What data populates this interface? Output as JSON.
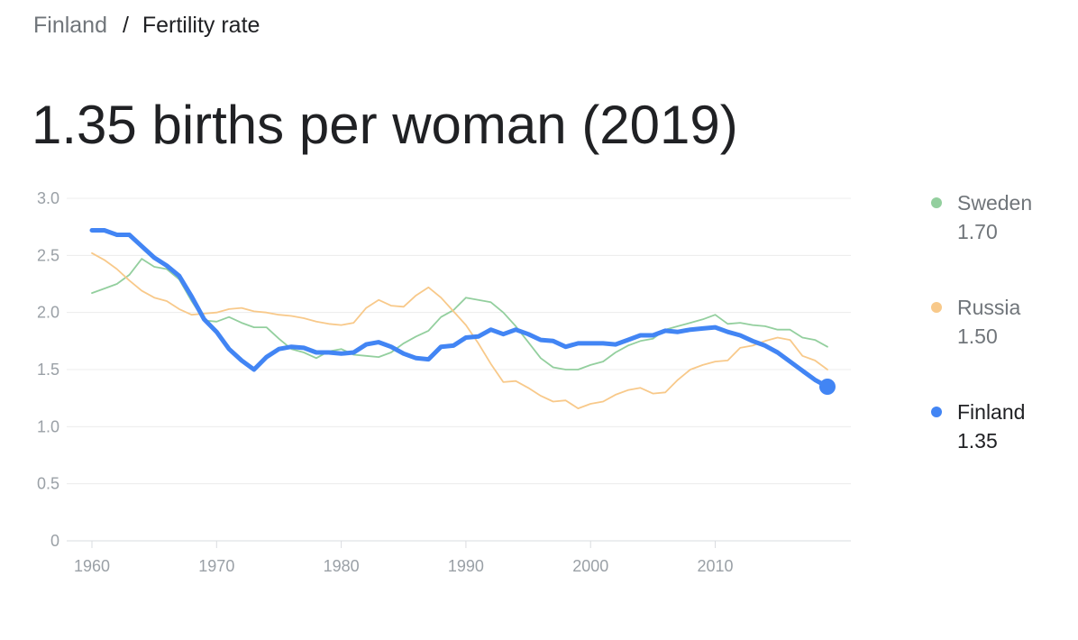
{
  "breadcrumb": {
    "parent": "Finland",
    "separator": "/",
    "current": "Fertility rate"
  },
  "headline": "1.35 births per woman (2019)",
  "legend": [
    {
      "name": "Sweden",
      "value": "1.70",
      "color": "#93cf9e",
      "active": false
    },
    {
      "name": "Russia",
      "value": "1.50",
      "color": "#f8c98a",
      "active": false
    },
    {
      "name": "Finland",
      "value": "1.35",
      "color": "#4285f4",
      "active": true
    }
  ],
  "chart_data": {
    "type": "line",
    "xlim": [
      1960,
      2019
    ],
    "ylim": [
      0,
      3.0
    ],
    "x_ticks": [
      1960,
      1970,
      1980,
      1990,
      2000,
      2010
    ],
    "x_tick_labels": [
      "1960",
      "1970",
      "1980",
      "1990",
      "2000",
      "2010"
    ],
    "y_ticks": [
      0,
      0.5,
      1.0,
      1.5,
      2.0,
      2.5,
      3.0
    ],
    "y_tick_labels": [
      "0",
      "0.5",
      "1.0",
      "1.5",
      "2.0",
      "2.5",
      "3.0"
    ],
    "grid": true,
    "legend_position": "right",
    "highlight_last_point": "Finland",
    "x": [
      1960,
      1961,
      1962,
      1963,
      1964,
      1965,
      1966,
      1967,
      1968,
      1969,
      1970,
      1971,
      1972,
      1973,
      1974,
      1975,
      1976,
      1977,
      1978,
      1979,
      1980,
      1981,
      1982,
      1983,
      1984,
      1985,
      1986,
      1987,
      1988,
      1989,
      1990,
      1991,
      1992,
      1993,
      1994,
      1995,
      1996,
      1997,
      1998,
      1999,
      2000,
      2001,
      2002,
      2003,
      2004,
      2005,
      2006,
      2007,
      2008,
      2009,
      2010,
      2011,
      2012,
      2013,
      2014,
      2015,
      2016,
      2017,
      2018,
      2019
    ],
    "series": [
      {
        "name": "Sweden",
        "color": "#93cf9e",
        "values": [
          2.17,
          2.21,
          2.25,
          2.33,
          2.47,
          2.4,
          2.38,
          2.29,
          2.1,
          1.93,
          1.92,
          1.96,
          1.91,
          1.87,
          1.87,
          1.77,
          1.68,
          1.65,
          1.6,
          1.66,
          1.68,
          1.63,
          1.62,
          1.61,
          1.65,
          1.73,
          1.79,
          1.84,
          1.96,
          2.02,
          2.13,
          2.11,
          2.09,
          2.0,
          1.88,
          1.74,
          1.6,
          1.52,
          1.5,
          1.5,
          1.54,
          1.57,
          1.65,
          1.71,
          1.75,
          1.77,
          1.85,
          1.88,
          1.91,
          1.94,
          1.98,
          1.9,
          1.91,
          1.89,
          1.88,
          1.85,
          1.85,
          1.78,
          1.76,
          1.7
        ]
      },
      {
        "name": "Russia",
        "color": "#f8c98a",
        "values": [
          2.52,
          2.46,
          2.38,
          2.28,
          2.19,
          2.13,
          2.1,
          2.03,
          1.98,
          1.99,
          2.0,
          2.03,
          2.04,
          2.01,
          2.0,
          1.98,
          1.97,
          1.95,
          1.92,
          1.9,
          1.89,
          1.91,
          2.04,
          2.11,
          2.06,
          2.05,
          2.15,
          2.22,
          2.13,
          2.01,
          1.89,
          1.73,
          1.55,
          1.39,
          1.4,
          1.34,
          1.27,
          1.22,
          1.23,
          1.16,
          1.2,
          1.22,
          1.28,
          1.32,
          1.34,
          1.29,
          1.3,
          1.41,
          1.5,
          1.54,
          1.57,
          1.58,
          1.69,
          1.71,
          1.75,
          1.78,
          1.76,
          1.62,
          1.58,
          1.5
        ]
      },
      {
        "name": "Finland",
        "color": "#4285f4",
        "values": [
          2.72,
          2.72,
          2.68,
          2.68,
          2.58,
          2.48,
          2.41,
          2.32,
          2.14,
          1.94,
          1.83,
          1.68,
          1.58,
          1.5,
          1.61,
          1.68,
          1.7,
          1.69,
          1.65,
          1.65,
          1.64,
          1.65,
          1.72,
          1.74,
          1.7,
          1.64,
          1.6,
          1.59,
          1.7,
          1.71,
          1.78,
          1.79,
          1.85,
          1.81,
          1.85,
          1.81,
          1.76,
          1.75,
          1.7,
          1.73,
          1.73,
          1.73,
          1.72,
          1.76,
          1.8,
          1.8,
          1.84,
          1.83,
          1.85,
          1.86,
          1.87,
          1.83,
          1.8,
          1.75,
          1.71,
          1.65,
          1.57,
          1.49,
          1.41,
          1.35
        ]
      }
    ]
  }
}
